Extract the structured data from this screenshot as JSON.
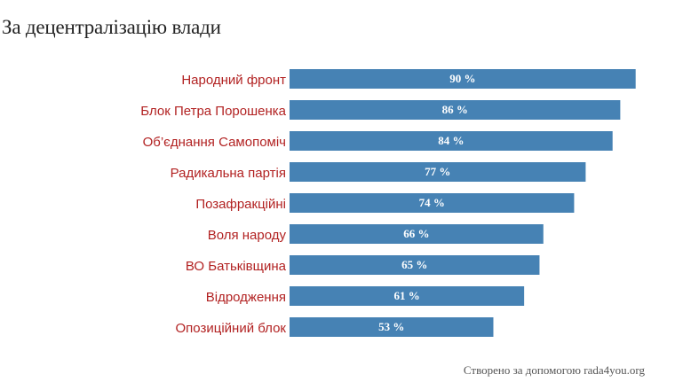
{
  "chart_data": {
    "type": "bar",
    "orientation": "horizontal",
    "title": "За децентралізацію влади",
    "categories": [
      "Народний фронт",
      "Блок Петра Порошенка",
      "Об’єднання Самопоміч",
      "Радикальна партія",
      "Позафракційні",
      "Воля народу",
      "ВО Батьківщина",
      "Відродження",
      "Опозиційний блок"
    ],
    "values": [
      90,
      86,
      84,
      77,
      74,
      66,
      65,
      61,
      53
    ],
    "value_labels": [
      "90 %",
      "86 %",
      "84 %",
      "77 %",
      "74 %",
      "66 %",
      "65 %",
      "61 %",
      "53 %"
    ],
    "unit": "%",
    "xlim": [
      0,
      100
    ],
    "grid": false,
    "legend": "none"
  },
  "colors": {
    "bar": "#4682b4",
    "category_label": "#b22222",
    "value_label": "#ffffff",
    "title": "#222222",
    "credit": "#555555"
  },
  "credit": "Створено за допомогою rada4you.org"
}
